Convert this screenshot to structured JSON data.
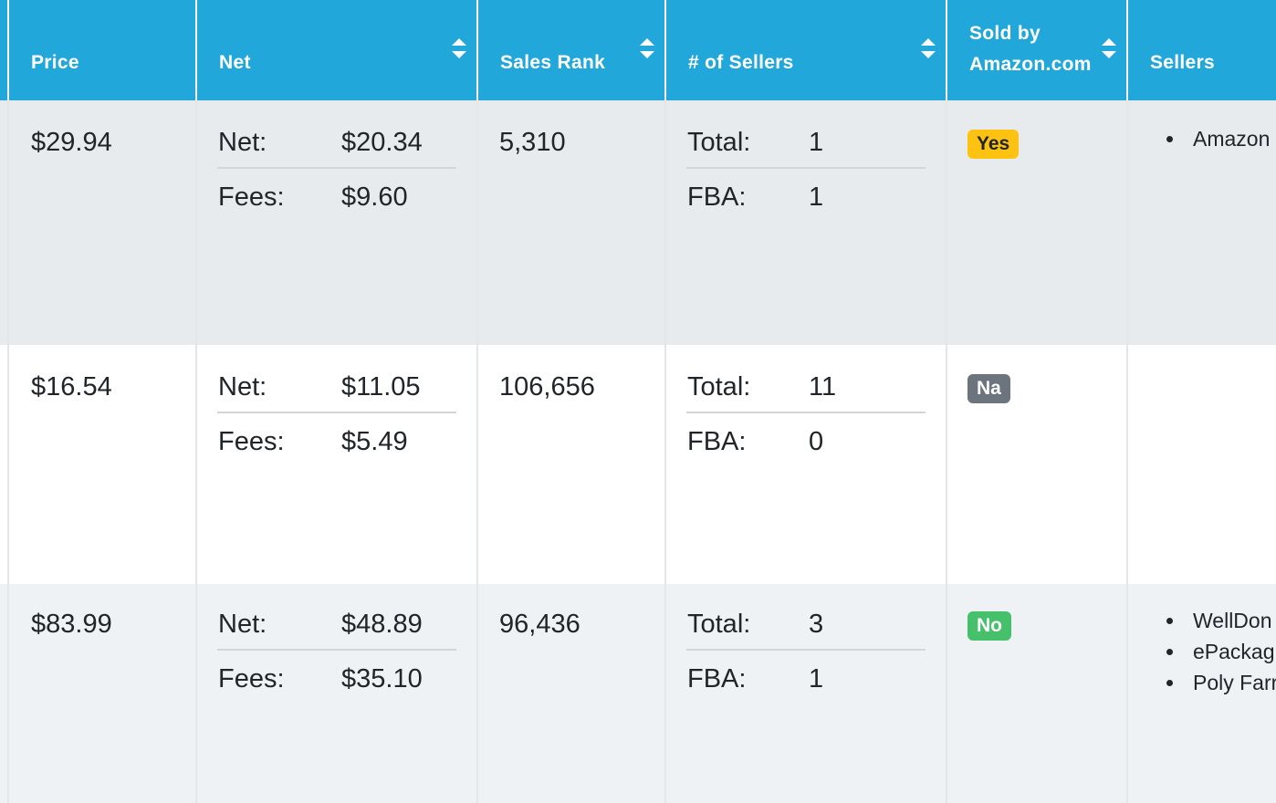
{
  "columns": {
    "price": "Price",
    "net": "Net",
    "sales_rank": "Sales Rank",
    "num_sellers": "# of Sellers",
    "sold_by_line1": "Sold by",
    "sold_by_line2": "Amazon.com",
    "sellers": "Sellers"
  },
  "labels": {
    "net": "Net:",
    "fees": "Fees:",
    "total": "Total:",
    "fba": "FBA:"
  },
  "colors": {
    "header_bg": "#22a7da",
    "badge_yes": "#fec310",
    "badge_na": "#6c757d",
    "badge_no": "#46c06a",
    "row_striped": "#e8ebee"
  },
  "rows": [
    {
      "price": "$29.94",
      "net": "$20.34",
      "fees": "$9.60",
      "sales_rank": "5,310",
      "total": "1",
      "fba": "1",
      "sold_by_amazon": "Yes",
      "sellers": [
        "Amazon"
      ]
    },
    {
      "price": "$16.54",
      "net": "$11.05",
      "fees": "$5.49",
      "sales_rank": "106,656",
      "total": "11",
      "fba": "0",
      "sold_by_amazon": "Na",
      "sellers": []
    },
    {
      "price": "$83.99",
      "net": "$48.89",
      "fees": "$35.10",
      "sales_rank": "96,436",
      "total": "3",
      "fba": "1",
      "sold_by_amazon": "No",
      "sellers": [
        "WellDon",
        "ePackag",
        "Poly Farr"
      ]
    }
  ]
}
